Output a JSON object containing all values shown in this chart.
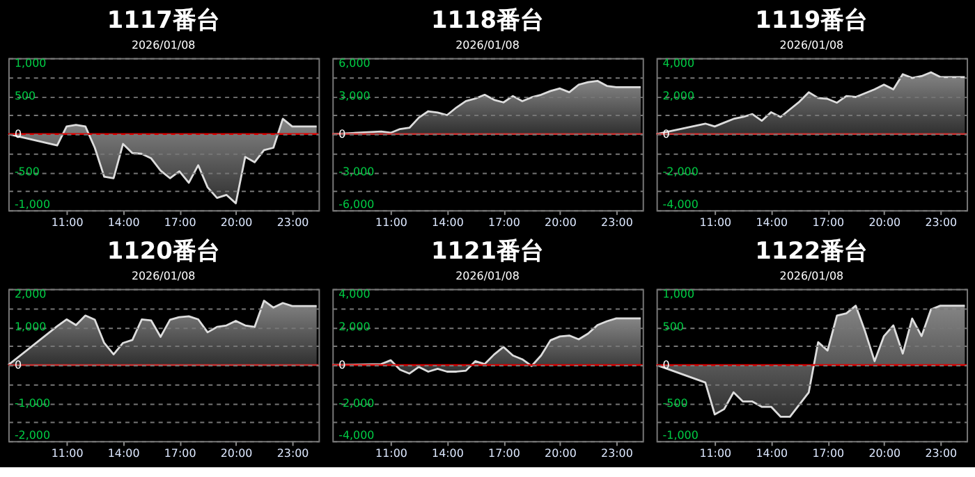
{
  "chart_data": [
    {
      "type": "area",
      "title": "1117番台",
      "subtitle": "2026/01/08",
      "color": "#dddddd",
      "grid": "y",
      "xlim": [
        7.9,
        24.4
      ],
      "xticks": [
        {
          "value": 11,
          "label": "11:00"
        },
        {
          "value": 14,
          "label": "14:00"
        },
        {
          "value": 17,
          "label": "17:00"
        },
        {
          "value": 20,
          "label": "20:00"
        },
        {
          "value": 23,
          "label": "23:00"
        }
      ],
      "ylim": [
        -1000,
        1000
      ],
      "yticks": [
        {
          "value": -1000,
          "label": "-1,000"
        },
        {
          "value": -750,
          "label": null
        },
        -500,
        {
          "value": -250,
          "label": null
        },
        0,
        {
          "value": 250,
          "label": null
        },
        500,
        {
          "value": 750,
          "label": null
        },
        {
          "value": 1000,
          "label": "1,000"
        }
      ],
      "ref_lines": [
        {
          "axis": "y",
          "value": 0,
          "color": "#dd0000"
        }
      ],
      "x": [
        7.9,
        10.5,
        11,
        11.5,
        12,
        12.5,
        13,
        13.5,
        14,
        14.5,
        15,
        15.5,
        16,
        16.5,
        17,
        17.5,
        18,
        18.5,
        19,
        19.5,
        20,
        20.5,
        21,
        21.5,
        22,
        22.5,
        23,
        24.3
      ],
      "values": [
        0,
        -150,
        100,
        120,
        100,
        -180,
        -560,
        -580,
        -130,
        -250,
        -260,
        -320,
        -480,
        -580,
        -490,
        -640,
        -410,
        -700,
        -840,
        -800,
        -910,
        -300,
        -370,
        -210,
        -180,
        200,
        100,
        100
      ]
    },
    {
      "type": "area",
      "title": "1118番台",
      "subtitle": "2026/01/08",
      "color": "#dddddd",
      "grid": "y",
      "xlim": [
        7.9,
        24.4
      ],
      "xticks": [
        {
          "value": 11,
          "label": "11:00"
        },
        {
          "value": 14,
          "label": "14:00"
        },
        {
          "value": 17,
          "label": "17:00"
        },
        {
          "value": 20,
          "label": "20:00"
        },
        {
          "value": 23,
          "label": "23:00"
        }
      ],
      "ylim": [
        -6000,
        6000
      ],
      "yticks": [
        {
          "value": -6000,
          "label": "-6,000"
        },
        {
          "value": -4500,
          "label": null
        },
        {
          "value": -3000,
          "label": "-3,000"
        },
        {
          "value": -1500,
          "label": null
        },
        0,
        {
          "value": 1500,
          "label": null
        },
        {
          "value": 3000,
          "label": "3,000"
        },
        {
          "value": 4500,
          "label": null
        },
        {
          "value": 6000,
          "label": "6,000"
        }
      ],
      "ref_lines": [
        {
          "axis": "y",
          "value": 0,
          "color": "#cc3333"
        }
      ],
      "x": [
        7.9,
        10.5,
        11,
        11.5,
        12,
        12.5,
        13,
        13.5,
        14,
        14.5,
        15,
        15.5,
        16,
        16.5,
        17,
        17.5,
        18,
        18.5,
        19,
        19.5,
        20,
        20.5,
        21,
        21.5,
        22,
        22.5,
        23,
        24.3
      ],
      "values": [
        0,
        200,
        100,
        400,
        500,
        1300,
        1800,
        1700,
        1500,
        2100,
        2600,
        2800,
        3100,
        2700,
        2500,
        3000,
        2600,
        2900,
        3100,
        3400,
        3600,
        3300,
        3900,
        4100,
        4200,
        3800,
        3700,
        3700
      ]
    },
    {
      "type": "area",
      "title": "1119番台",
      "subtitle": "2026/01/08",
      "color": "#dddddd",
      "grid": "y",
      "xlim": [
        7.9,
        24.4
      ],
      "xticks": [
        {
          "value": 11,
          "label": "11:00"
        },
        {
          "value": 14,
          "label": "14:00"
        },
        {
          "value": 17,
          "label": "17:00"
        },
        {
          "value": 20,
          "label": "20:00"
        },
        {
          "value": 23,
          "label": "23:00"
        }
      ],
      "ylim": [
        -4000,
        4000
      ],
      "yticks": [
        {
          "value": -4000,
          "label": "-4,000"
        },
        {
          "value": -3000,
          "label": null
        },
        {
          "value": -2000,
          "label": "-2,000"
        },
        {
          "value": -1000,
          "label": null
        },
        0,
        {
          "value": 1000,
          "label": null
        },
        {
          "value": 2000,
          "label": "2,000"
        },
        {
          "value": 3000,
          "label": null
        },
        {
          "value": 4000,
          "label": "4,000"
        }
      ],
      "ref_lines": [
        {
          "axis": "y",
          "value": 0,
          "color": "#cc3333"
        }
      ],
      "x": [
        7.9,
        10.5,
        11,
        11.5,
        12,
        12.5,
        13,
        13.5,
        14,
        14.5,
        15,
        15.5,
        16,
        16.5,
        17,
        17.5,
        18,
        18.5,
        19,
        19.5,
        20,
        20.5,
        21,
        21.5,
        22,
        22.5,
        23,
        24.3
      ],
      "values": [
        0,
        550,
        400,
        600,
        800,
        900,
        1050,
        700,
        1150,
        900,
        1300,
        1700,
        2200,
        1900,
        1850,
        1650,
        2000,
        1950,
        2150,
        2350,
        2600,
        2350,
        3150,
        2950,
        3050,
        3250,
        3000,
        3000
      ]
    },
    {
      "type": "area",
      "title": "1120番台",
      "subtitle": "2026/01/08",
      "color": "#dddddd",
      "grid": "y",
      "xlim": [
        7.9,
        24.4
      ],
      "xticks": [
        {
          "value": 11,
          "label": "11:00"
        },
        {
          "value": 14,
          "label": "14:00"
        },
        {
          "value": 17,
          "label": "17:00"
        },
        {
          "value": 20,
          "label": "20:00"
        },
        {
          "value": 23,
          "label": "23:00"
        }
      ],
      "ylim": [
        -2000,
        2000
      ],
      "yticks": [
        {
          "value": -2000,
          "label": "-2,000"
        },
        {
          "value": -1500,
          "label": null
        },
        {
          "value": -1000,
          "label": "-1,000"
        },
        {
          "value": -500,
          "label": null
        },
        0,
        {
          "value": 500,
          "label": null
        },
        {
          "value": 1000,
          "label": "1,000"
        },
        {
          "value": 1500,
          "label": null
        },
        {
          "value": 2000,
          "label": "2,000"
        }
      ],
      "ref_lines": [
        {
          "axis": "y",
          "value": 0,
          "color": "#cc3333"
        }
      ],
      "x": [
        7.9,
        10.5,
        11,
        11.5,
        12,
        12.5,
        13,
        13.5,
        14,
        14.5,
        15,
        15.5,
        16,
        16.5,
        17,
        17.5,
        18,
        18.5,
        19,
        19.5,
        20,
        20.5,
        21,
        21.5,
        22,
        22.5,
        23,
        24.3
      ],
      "values": [
        0,
        1020,
        1200,
        1050,
        1300,
        1190,
        580,
        280,
        580,
        660,
        1200,
        1170,
        740,
        1190,
        1260,
        1280,
        1200,
        860,
        1000,
        1040,
        1160,
        1040,
        1000,
        1690,
        1510,
        1630,
        1550,
        1550
      ]
    },
    {
      "type": "area",
      "title": "1121番台",
      "subtitle": "2026/01/08",
      "color": "#dddddd",
      "grid": "y",
      "xlim": [
        7.9,
        24.4
      ],
      "xticks": [
        {
          "value": 11,
          "label": "11:00"
        },
        {
          "value": 14,
          "label": "14:00"
        },
        {
          "value": 17,
          "label": "17:00"
        },
        {
          "value": 20,
          "label": "20:00"
        },
        {
          "value": 23,
          "label": "23:00"
        }
      ],
      "ylim": [
        -4000,
        4000
      ],
      "yticks": [
        {
          "value": -4000,
          "label": "-4,000"
        },
        {
          "value": -3000,
          "label": null
        },
        {
          "value": -2000,
          "label": "-2,000"
        },
        {
          "value": -1000,
          "label": null
        },
        0,
        {
          "value": 1000,
          "label": null
        },
        {
          "value": 2000,
          "label": "2,000"
        },
        {
          "value": 3000,
          "label": null
        },
        {
          "value": 4000,
          "label": "4,000"
        }
      ],
      "ref_lines": [
        {
          "axis": "y",
          "value": 0,
          "color": "#dd0000"
        }
      ],
      "x": [
        7.9,
        10.5,
        11,
        11.5,
        12,
        12.5,
        13,
        13.5,
        14,
        14.5,
        15,
        15.5,
        16,
        16.5,
        17,
        17.5,
        18,
        18.5,
        19,
        19.5,
        20,
        20.5,
        21,
        21.5,
        22,
        22.5,
        23,
        24.3
      ],
      "values": [
        0,
        50,
        250,
        -250,
        -450,
        -100,
        -350,
        -200,
        -350,
        -350,
        -300,
        200,
        50,
        550,
        950,
        500,
        300,
        -50,
        500,
        1300,
        1500,
        1550,
        1350,
        1650,
        2100,
        2300,
        2450,
        2450
      ]
    },
    {
      "type": "area",
      "title": "1122番台",
      "subtitle": "2026/01/08",
      "color": "#dddddd",
      "grid": "y",
      "xlim": [
        7.9,
        24.4
      ],
      "xticks": [
        {
          "value": 11,
          "label": "11:00"
        },
        {
          "value": 14,
          "label": "14:00"
        },
        {
          "value": 17,
          "label": "17:00"
        },
        {
          "value": 20,
          "label": "20:00"
        },
        {
          "value": 23,
          "label": "23:00"
        }
      ],
      "ylim": [
        -1000,
        1000
      ],
      "yticks": [
        {
          "value": -1000,
          "label": "-1,000"
        },
        {
          "value": -750,
          "label": null
        },
        -500,
        {
          "value": -250,
          "label": null
        },
        0,
        {
          "value": 250,
          "label": null
        },
        500,
        {
          "value": 750,
          "label": null
        },
        {
          "value": 1000,
          "label": "1,000"
        }
      ],
      "ref_lines": [
        {
          "axis": "y",
          "value": 0,
          "color": "#dd0000"
        }
      ],
      "x": [
        7.9,
        10.5,
        11,
        11.5,
        12,
        12.5,
        13,
        13.5,
        14,
        14.5,
        15,
        15.5,
        16,
        16.5,
        17,
        17.5,
        18,
        18.5,
        19,
        19.5,
        20,
        20.5,
        21,
        21.5,
        22,
        22.5,
        23,
        24.3
      ],
      "values": [
        0,
        -230,
        -650,
        -580,
        -360,
        -480,
        -480,
        -550,
        -550,
        -680,
        -680,
        -520,
        -360,
        300,
        190,
        650,
        680,
        780,
        440,
        50,
        380,
        520,
        150,
        610,
        380,
        730,
        780,
        780
      ]
    }
  ]
}
